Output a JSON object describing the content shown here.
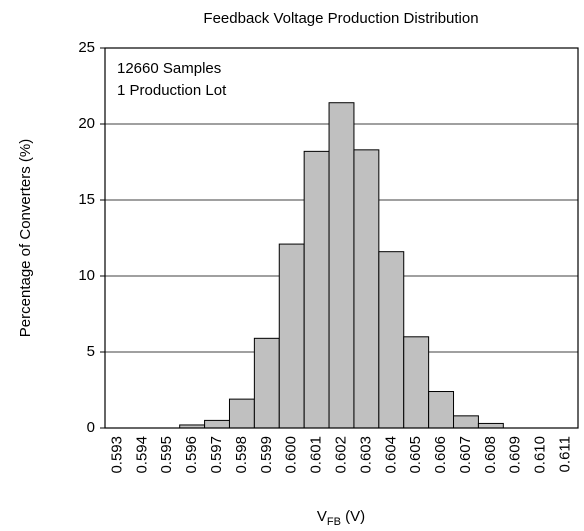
{
  "chart_data": {
    "type": "bar",
    "title": "Feedback Voltage Production Distribution",
    "y_label": "Percentage of Converters (%)",
    "x_label_parts": [
      "V",
      "FB",
      " (V)"
    ],
    "annotations": [
      "12660 Samples",
      "1 Production Lot"
    ],
    "categories": [
      "0.593",
      "0.594",
      "0.595",
      "0.596",
      "0.597",
      "0.598",
      "0.599",
      "0.600",
      "0.601",
      "0.602",
      "0.603",
      "0.604",
      "0.605",
      "0.606",
      "0.607",
      "0.608",
      "0.609",
      "0.610",
      "0.611"
    ],
    "values": [
      0,
      0,
      0,
      0.2,
      0.5,
      1.9,
      5.9,
      12.1,
      18.2,
      21.4,
      18.3,
      11.6,
      6.0,
      2.4,
      0.8,
      0.3,
      0,
      0,
      0
    ],
    "color": "#c0c0c0",
    "ylim": [
      0,
      25
    ],
    "yticks": [
      0,
      5,
      10,
      15,
      20,
      25
    ],
    "grid": true
  }
}
